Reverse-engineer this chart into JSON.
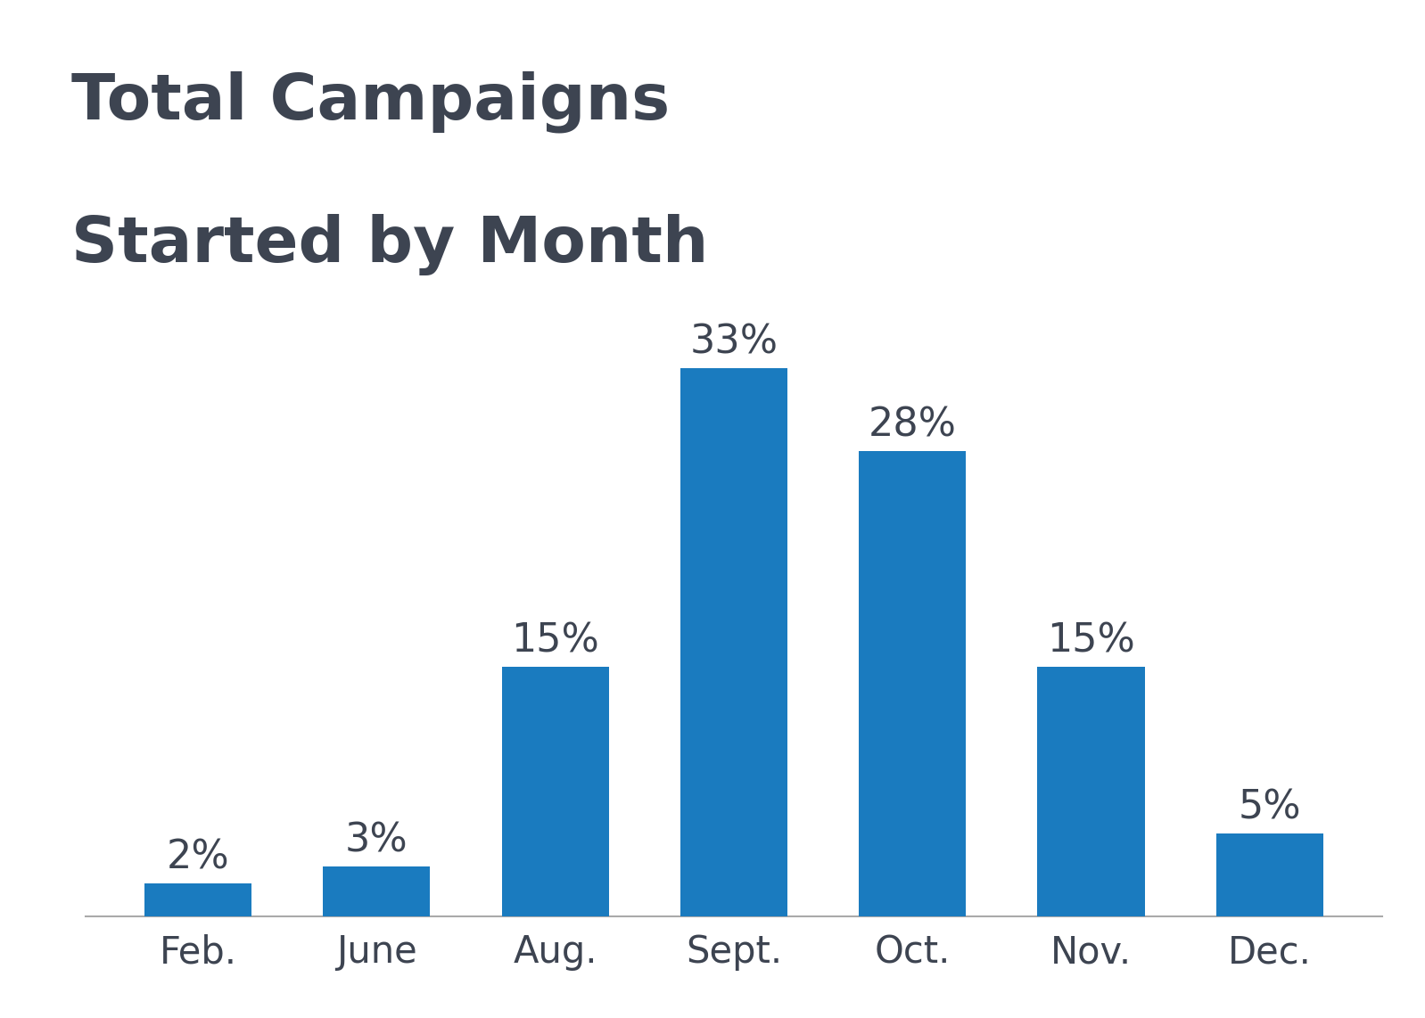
{
  "title_line1": "Total Campaigns",
  "title_line2": "Started by Month",
  "categories": [
    "Feb.",
    "June",
    "Aug.",
    "Sept.",
    "Oct.",
    "Nov.",
    "Dec."
  ],
  "values": [
    2,
    3,
    15,
    33,
    28,
    15,
    5
  ],
  "bar_color": "#1a7bbf",
  "title_color": "#3d4451",
  "label_color": "#3d4451",
  "tick_color": "#3d4451",
  "axis_line_color": "#aaaaaa",
  "background_color": "#ffffff",
  "title_fontsize": 52,
  "label_fontsize": 32,
  "tick_fontsize": 30,
  "bar_width": 0.6,
  "ylim": [
    0,
    38
  ]
}
